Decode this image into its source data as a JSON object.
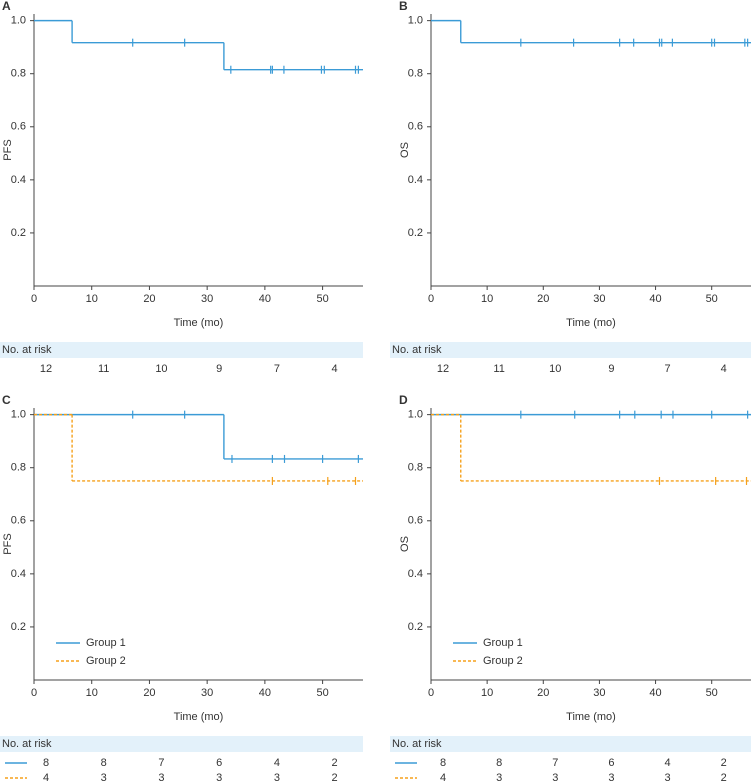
{
  "chart_data": [
    {
      "type": "line",
      "panel_label": "A",
      "ylabel": "PFS",
      "xlabel": "Time (mo)",
      "xlim": [
        0,
        57
      ],
      "ylim": [
        0,
        1.025
      ],
      "xticks": [
        0,
        10,
        20,
        30,
        40,
        50
      ],
      "yticks": [
        0.2,
        0.4,
        0.6,
        0.8,
        {
          "value": 1,
          "label": "1.0"
        }
      ],
      "step": true,
      "legend": false,
      "series": [
        {
          "color": "#3b9bd6",
          "dash": false,
          "x": [
            0,
            6.6,
            32.9
          ],
          "values": [
            1,
            0.917,
            0.815
          ],
          "censor_x": [
            17.1,
            26.1,
            34.1,
            41.0,
            41.3,
            43.3,
            49.8,
            50.3,
            55.7,
            56.2
          ],
          "censor_values": [
            0.917,
            0.917,
            0.815,
            0.815,
            0.815,
            0.815,
            0.815,
            0.815,
            0.815,
            0.815
          ]
        }
      ],
      "risk_table": {
        "title": "No. at risk",
        "rows": [
          [
            12,
            11,
            10,
            9,
            7,
            4
          ]
        ]
      }
    },
    {
      "type": "line",
      "panel_label": "B",
      "ylabel": "OS",
      "xlabel": "Time (mo)",
      "xlim": [
        0,
        57
      ],
      "ylim": [
        0,
        1.025
      ],
      "xticks": [
        0,
        10,
        20,
        30,
        40,
        50
      ],
      "yticks": [
        0.2,
        0.4,
        0.6,
        0.8,
        {
          "value": 1,
          "label": "1.0"
        }
      ],
      "step": true,
      "legend": false,
      "series": [
        {
          "color": "#3b9bd6",
          "dash": false,
          "x": [
            0,
            5.3
          ],
          "values": [
            1,
            0.917
          ],
          "censor_x": [
            16.0,
            25.4,
            33.6,
            36.1,
            40.7,
            41.1,
            43.0,
            50.0,
            50.5,
            55.9,
            56.4
          ],
          "censor_values": [
            0.917,
            0.917,
            0.917,
            0.917,
            0.917,
            0.917,
            0.917,
            0.917,
            0.917,
            0.917,
            0.917
          ]
        }
      ],
      "risk_table": {
        "title": "No. at risk",
        "rows": [
          [
            12,
            11,
            10,
            9,
            7,
            4
          ]
        ]
      }
    },
    {
      "type": "line",
      "panel_label": "C",
      "ylabel": "PFS",
      "xlabel": "Time (mo)",
      "xlim": [
        0,
        57
      ],
      "ylim": [
        0,
        1.025
      ],
      "xticks": [
        0,
        10,
        20,
        30,
        40,
        50
      ],
      "yticks": [
        0.2,
        0.4,
        0.6,
        0.8,
        {
          "value": 1,
          "label": "1.0"
        }
      ],
      "step": true,
      "legend": true,
      "series": [
        {
          "name": "Group 1",
          "color": "#3b9bd6",
          "dash": false,
          "x": [
            0,
            32.9
          ],
          "values": [
            1,
            0.833
          ],
          "censor_x": [
            17.1,
            26.1,
            34.3,
            41.3,
            43.4,
            50.0,
            56.2
          ],
          "censor_values": [
            1,
            1,
            0.833,
            0.833,
            0.833,
            0.833,
            0.833
          ]
        },
        {
          "name": "Group 2",
          "color": "#f5a11c",
          "dash": true,
          "x": [
            0,
            6.6
          ],
          "values": [
            1,
            0.75
          ],
          "censor_x": [
            41.3,
            50.9,
            55.7
          ],
          "censor_values": [
            0.75,
            0.75,
            0.75
          ]
        }
      ],
      "risk_table": {
        "title": "No. at risk",
        "rows": [
          [
            8,
            8,
            7,
            6,
            4,
            2
          ],
          [
            4,
            3,
            3,
            3,
            3,
            2
          ]
        ]
      }
    },
    {
      "type": "line",
      "panel_label": "D",
      "ylabel": "OS",
      "xlabel": "Time (mo)",
      "xlim": [
        0,
        57
      ],
      "ylim": [
        0,
        1.025
      ],
      "xticks": [
        0,
        10,
        20,
        30,
        40,
        50
      ],
      "yticks": [
        0.2,
        0.4,
        0.6,
        0.8,
        {
          "value": 1,
          "label": "1.0"
        }
      ],
      "step": true,
      "legend": true,
      "series": [
        {
          "name": "Group 1",
          "color": "#3b9bd6",
          "dash": false,
          "x": [
            0
          ],
          "values": [
            1
          ],
          "censor_x": [
            16.0,
            25.6,
            33.6,
            36.3,
            41.0,
            43.1,
            50.0,
            56.4
          ],
          "censor_values": [
            1,
            1,
            1,
            1,
            1,
            1,
            1,
            1
          ]
        },
        {
          "name": "Group 2",
          "color": "#f5a11c",
          "dash": true,
          "x": [
            0,
            5.3
          ],
          "values": [
            1,
            0.75
          ],
          "censor_x": [
            40.7,
            50.7,
            56.2
          ],
          "censor_values": [
            0.75,
            0.75,
            0.75
          ]
        }
      ],
      "risk_table": {
        "title": "No. at risk",
        "rows": [
          [
            8,
            8,
            7,
            6,
            4,
            2
          ],
          [
            4,
            3,
            3,
            3,
            3,
            2
          ]
        ]
      }
    }
  ]
}
